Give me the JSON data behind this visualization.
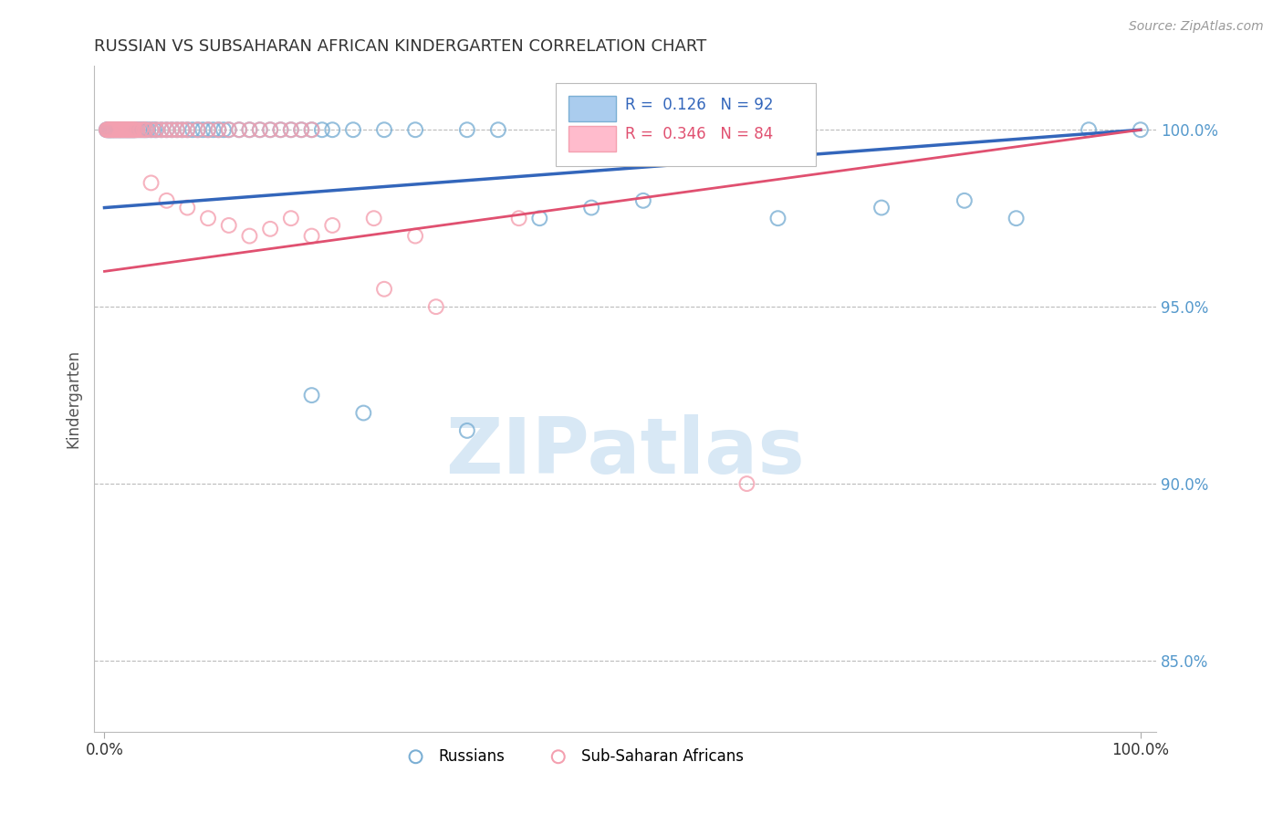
{
  "title": "RUSSIAN VS SUBSAHARAN AFRICAN KINDERGARTEN CORRELATION CHART",
  "source_text": "Source: ZipAtlas.com",
  "ylabel": "Kindergarten",
  "legend_russian": "Russians",
  "legend_subsaharan": "Sub-Saharan Africans",
  "color_russian": "#7BAFD4",
  "color_subsaharan": "#F4A0B0",
  "color_russian_line": "#3366BB",
  "color_subsaharan_line": "#E05070",
  "color_grid": "#BBBBBB",
  "color_ytick": "#5599CC",
  "watermark_color": "#D8E8F5",
  "yticks": [
    85.0,
    90.0,
    95.0,
    100.0
  ],
  "ylim": [
    83.0,
    101.8
  ],
  "xlim": [
    -1.0,
    101.5
  ],
  "russian_x": [
    0.2,
    0.3,
    0.4,
    0.5,
    0.5,
    0.6,
    0.7,
    0.8,
    0.9,
    1.0,
    1.1,
    1.2,
    1.3,
    1.4,
    1.5,
    1.6,
    1.7,
    1.8,
    1.9,
    2.0,
    2.1,
    2.2,
    2.3,
    2.4,
    2.5,
    2.6,
    2.7,
    2.8,
    2.9,
    3.0,
    3.2,
    3.4,
    3.6,
    3.8,
    4.0,
    4.2,
    4.5,
    4.8,
    5.0,
    5.5,
    6.0,
    6.5,
    7.0,
    7.5,
    8.0,
    8.5,
    9.0,
    9.5,
    10.0,
    10.5,
    11.0,
    11.5,
    12.0,
    13.0,
    14.0,
    15.0,
    16.0,
    17.0,
    18.0,
    19.0,
    20.0,
    21.0,
    22.0,
    24.0,
    27.0,
    30.0,
    35.0,
    38.0,
    42.0,
    47.0,
    52.0,
    20.0,
    25.0,
    35.0,
    65.0,
    75.0,
    83.0,
    88.0,
    95.0,
    100.0
  ],
  "russian_y": [
    100.0,
    100.0,
    100.0,
    100.0,
    100.0,
    100.0,
    100.0,
    100.0,
    100.0,
    100.0,
    100.0,
    100.0,
    100.0,
    100.0,
    100.0,
    100.0,
    100.0,
    100.0,
    100.0,
    100.0,
    100.0,
    100.0,
    100.0,
    100.0,
    100.0,
    100.0,
    100.0,
    100.0,
    100.0,
    100.0,
    100.0,
    100.0,
    100.0,
    100.0,
    100.0,
    100.0,
    100.0,
    100.0,
    100.0,
    100.0,
    100.0,
    100.0,
    100.0,
    100.0,
    100.0,
    100.0,
    100.0,
    100.0,
    100.0,
    100.0,
    100.0,
    100.0,
    100.0,
    100.0,
    100.0,
    100.0,
    100.0,
    100.0,
    100.0,
    100.0,
    100.0,
    100.0,
    100.0,
    100.0,
    100.0,
    100.0,
    100.0,
    100.0,
    97.5,
    97.8,
    98.0,
    92.5,
    92.0,
    91.5,
    97.5,
    97.8,
    98.0,
    97.5,
    100.0,
    100.0
  ],
  "subsaharan_x": [
    0.2,
    0.3,
    0.4,
    0.5,
    0.6,
    0.7,
    0.8,
    0.9,
    1.0,
    1.1,
    1.2,
    1.3,
    1.4,
    1.5,
    1.6,
    1.7,
    1.8,
    1.9,
    2.0,
    2.1,
    2.2,
    2.3,
    2.4,
    2.5,
    2.6,
    2.7,
    2.8,
    2.9,
    3.0,
    3.2,
    3.5,
    3.8,
    4.0,
    4.5,
    5.0,
    5.5,
    6.0,
    6.5,
    7.0,
    7.5,
    8.0,
    9.0,
    10.0,
    11.0,
    12.0,
    13.0,
    14.0,
    15.0,
    16.0,
    17.0,
    18.0,
    19.0,
    20.0,
    4.5,
    6.0,
    8.0,
    10.0,
    12.0,
    14.0,
    16.0,
    18.0,
    20.0,
    22.0,
    26.0,
    30.0,
    27.0,
    32.0,
    40.0,
    62.0
  ],
  "subsaharan_y": [
    100.0,
    100.0,
    100.0,
    100.0,
    100.0,
    100.0,
    100.0,
    100.0,
    100.0,
    100.0,
    100.0,
    100.0,
    100.0,
    100.0,
    100.0,
    100.0,
    100.0,
    100.0,
    100.0,
    100.0,
    100.0,
    100.0,
    100.0,
    100.0,
    100.0,
    100.0,
    100.0,
    100.0,
    100.0,
    100.0,
    100.0,
    100.0,
    100.0,
    100.0,
    100.0,
    100.0,
    100.0,
    100.0,
    100.0,
    100.0,
    100.0,
    100.0,
    100.0,
    100.0,
    100.0,
    100.0,
    100.0,
    100.0,
    100.0,
    100.0,
    100.0,
    100.0,
    100.0,
    98.5,
    98.0,
    97.8,
    97.5,
    97.3,
    97.0,
    97.2,
    97.5,
    97.0,
    97.3,
    97.5,
    97.0,
    95.5,
    95.0,
    97.5,
    90.0
  ],
  "trendline_russian_x0": 0,
  "trendline_russian_y0": 97.8,
  "trendline_russian_x1": 100,
  "trendline_russian_y1": 100.0,
  "trendline_subsaharan_x0": 0,
  "trendline_subsaharan_y0": 96.0,
  "trendline_subsaharan_x1": 100,
  "trendline_subsaharan_y1": 100.0
}
